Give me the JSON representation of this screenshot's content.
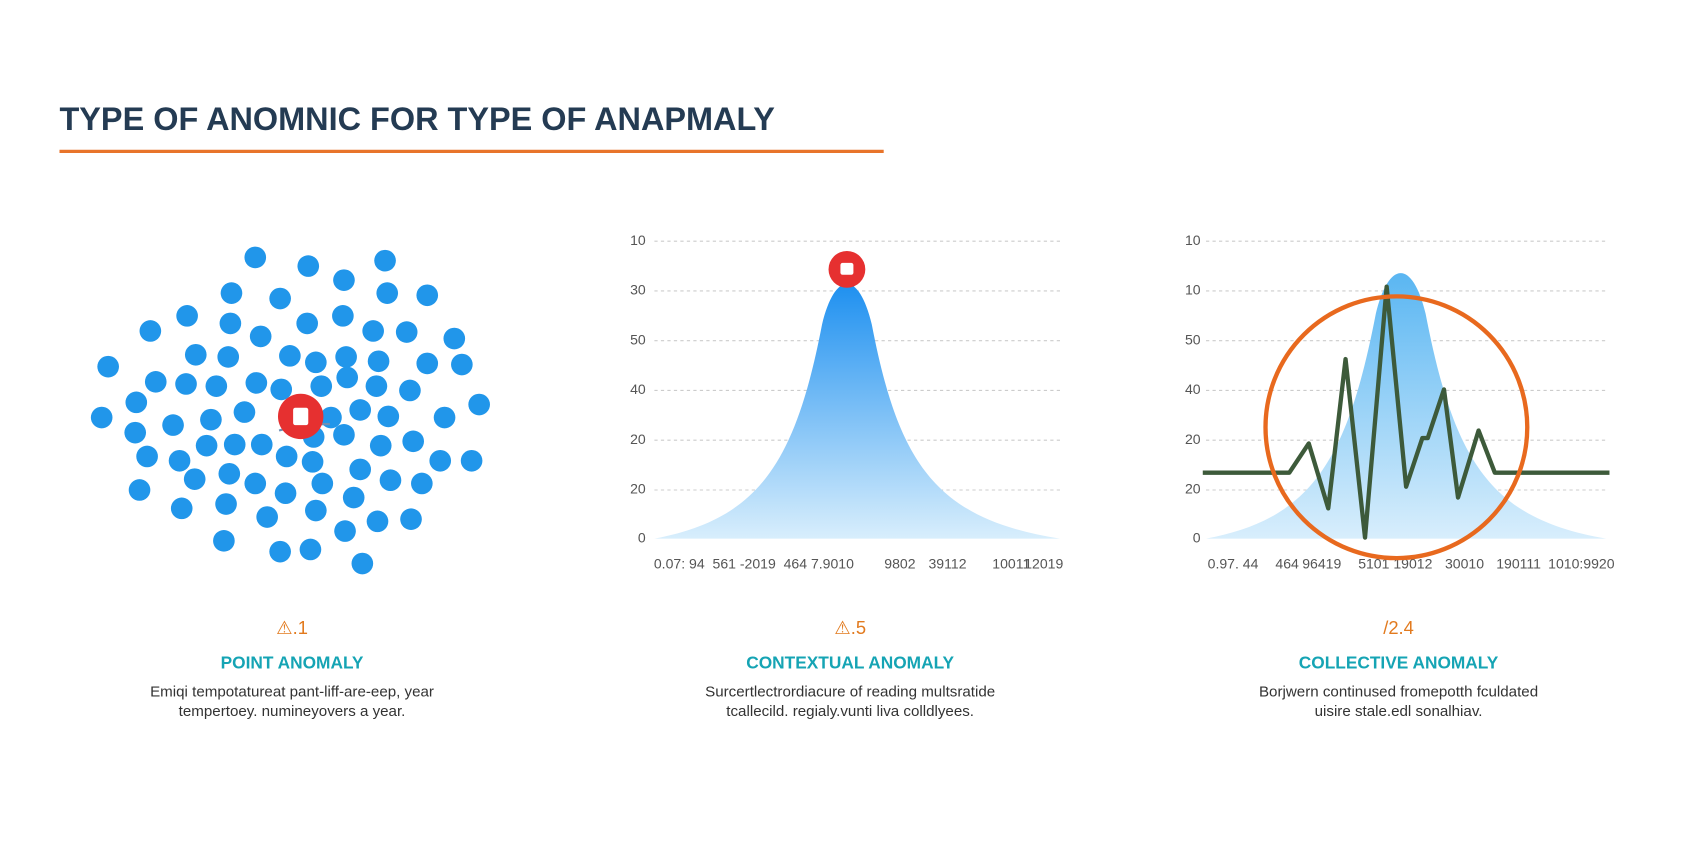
{
  "header": {
    "title": "TYPE OF ANOMNIC FOR TYPE OF ANAPMALY"
  },
  "panels": [
    {
      "badge": "⚠.1",
      "heading": "POINT ANOMALY",
      "description": [
        "Emiqi tempotatureat pant-liff-are-eep, year",
        "tempertoey. numineyovers a year."
      ]
    },
    {
      "badge": "⚠.5",
      "heading": "CONTEXTUAL ANOMALY",
      "description": [
        "Surcertlectrordiacure of reading multsratide",
        "tcallecild. regialy.vunti liva colldlyees."
      ],
      "y_labels": [
        "10",
        "30",
        "50",
        "40",
        "20",
        "20",
        "0"
      ],
      "x_labels": [
        "0.07: 94",
        "561 -2019",
        "464 7.9010",
        "9802",
        "39112",
        "10011",
        "12019"
      ]
    },
    {
      "badge": "/2.4",
      "heading": "COLLECTIVE ANOMALY",
      "description": [
        "Borjwern continused fromepotth fculdated",
        "uisire stale.edl sonalhiav."
      ],
      "y_labels": [
        "10",
        "10",
        "50",
        "40",
        "20",
        "20",
        "0"
      ],
      "x_labels": [
        "0.97. 44",
        "464",
        "96419",
        "5101 19012",
        "30010",
        "190111",
        "1010:9920"
      ]
    }
  ]
}
